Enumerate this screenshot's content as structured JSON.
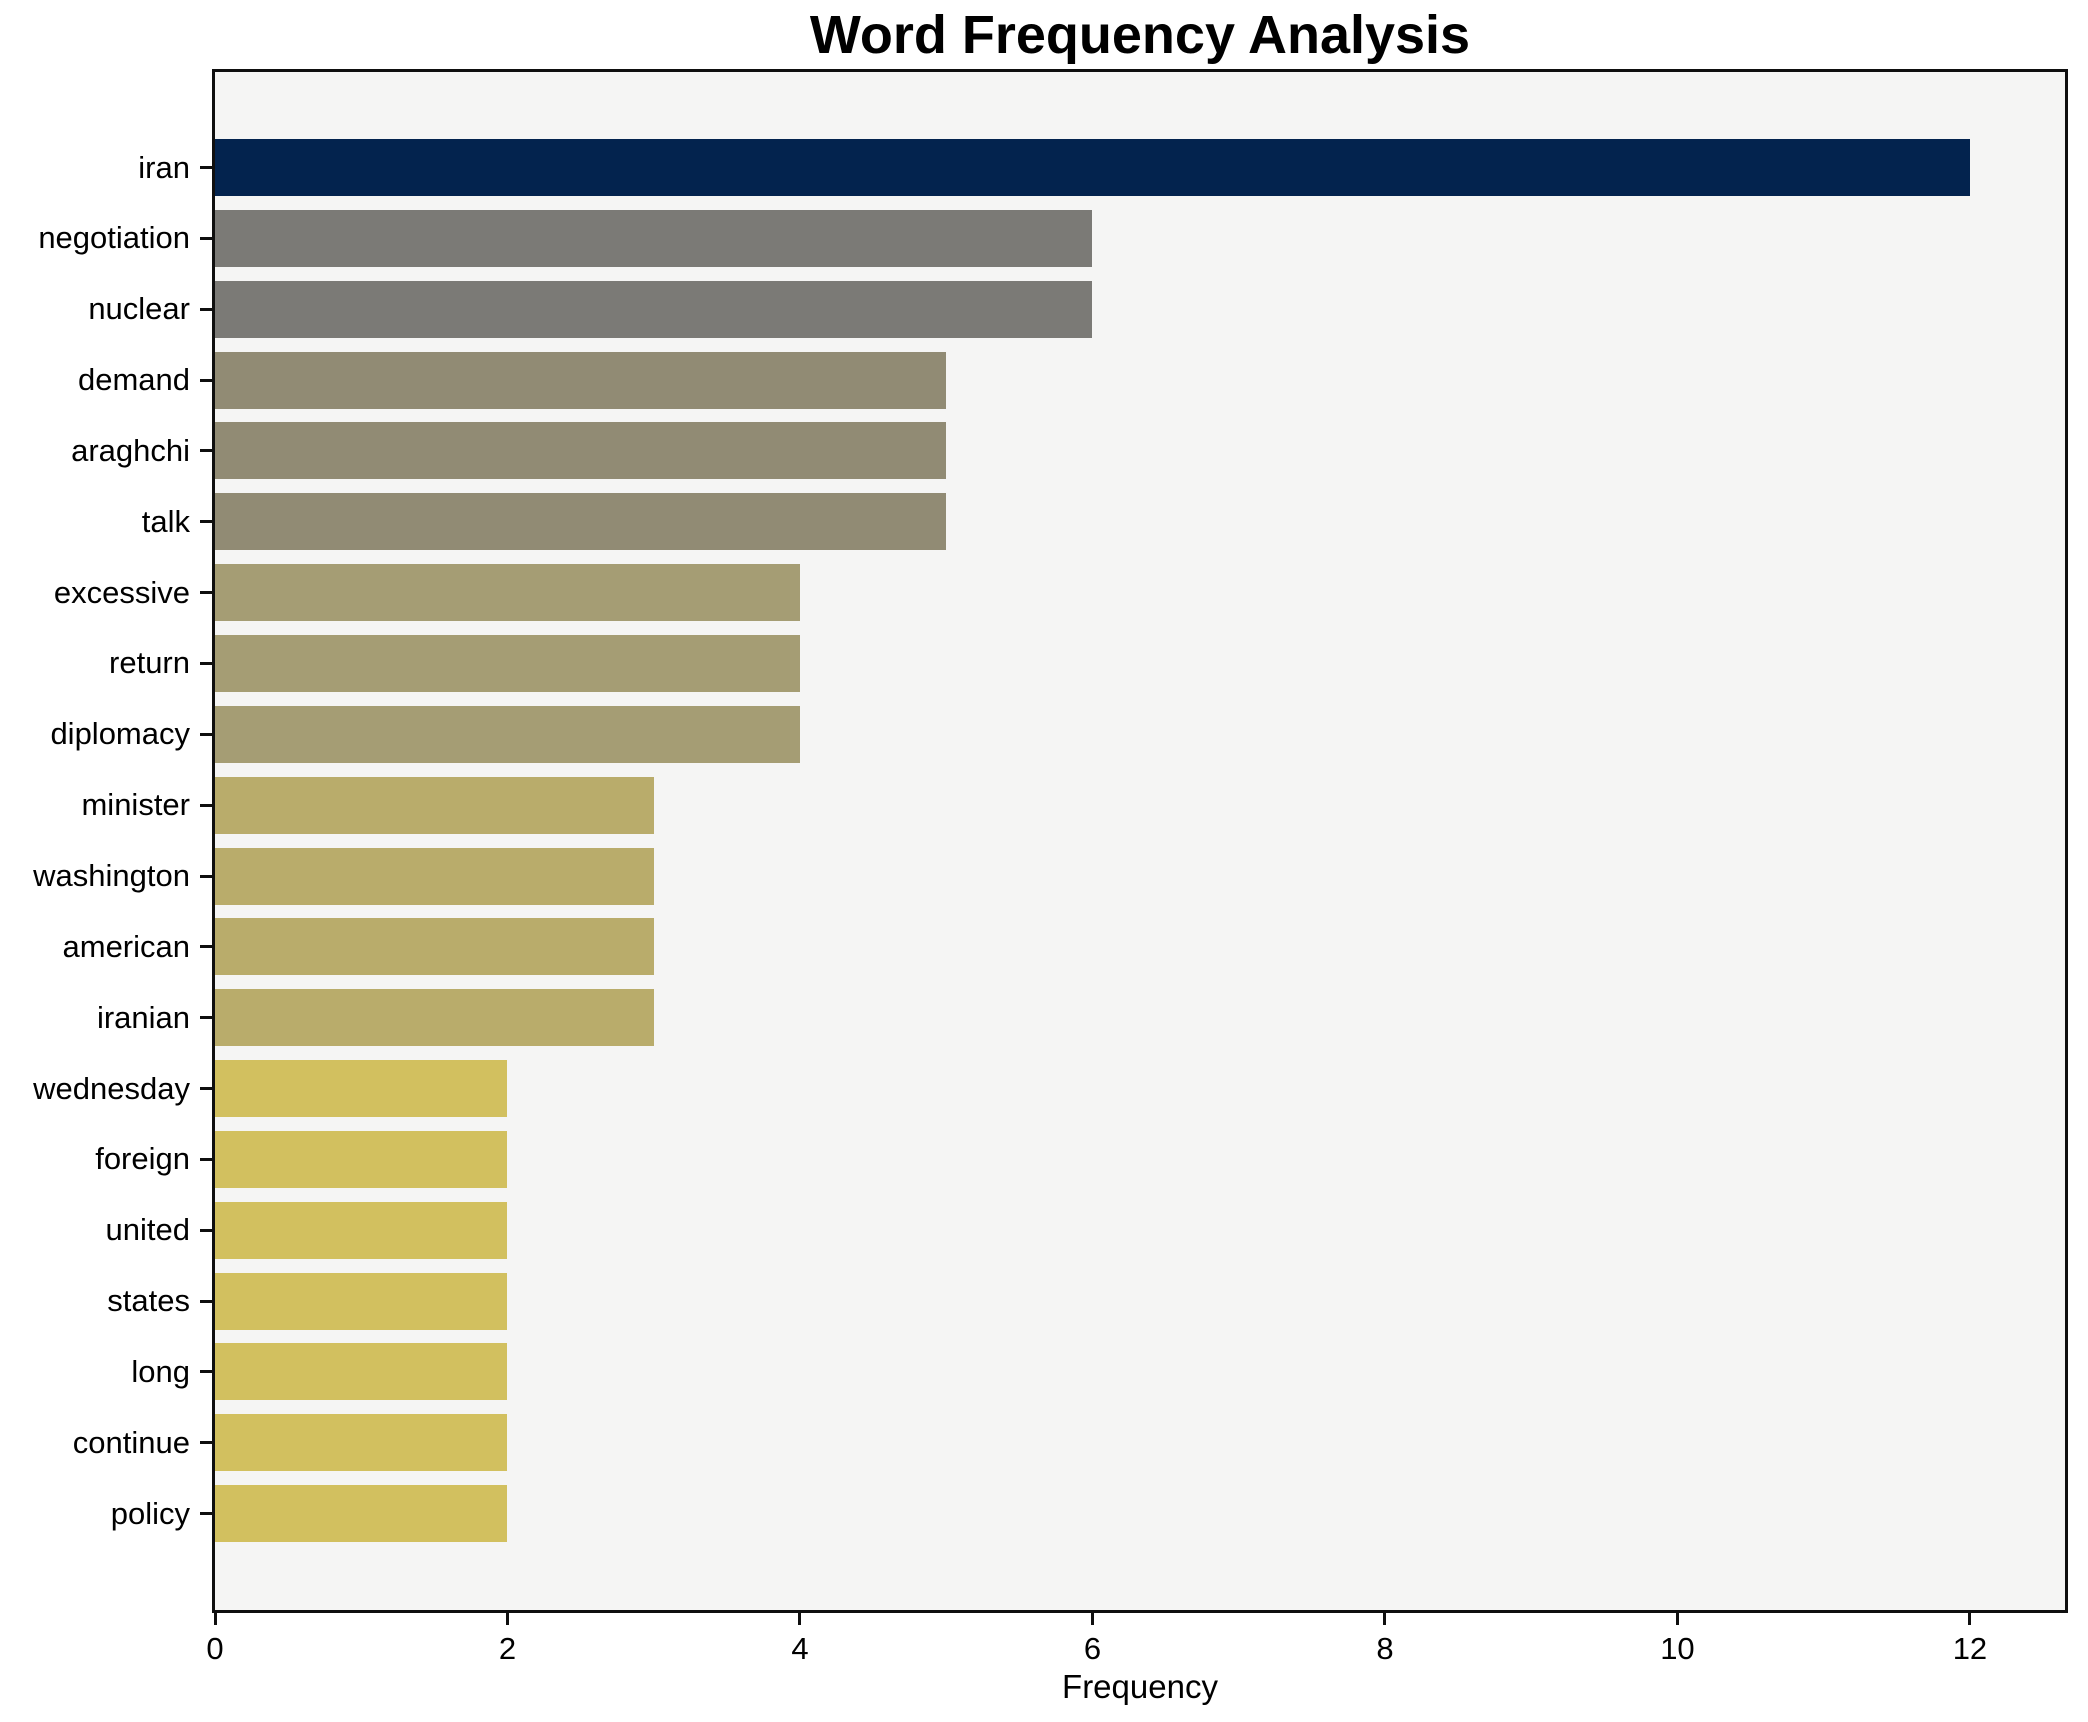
{
  "chart_data": {
    "type": "bar",
    "orientation": "horizontal",
    "title": "Word Frequency Analysis",
    "xlabel": "Frequency",
    "ylabel": "",
    "grid": false,
    "legend": null,
    "xlim": [
      0,
      12.65
    ],
    "xticks": [
      0,
      2,
      4,
      6,
      8,
      10,
      12
    ],
    "plot_background": "#f5f5f4",
    "figure_background": "#ffffff",
    "spine_color": "#0f0f0f",
    "categories": [
      "iran",
      "negotiation",
      "nuclear",
      "demand",
      "araghchi",
      "talk",
      "excessive",
      "return",
      "diplomacy",
      "minister",
      "washington",
      "american",
      "iranian",
      "wednesday",
      "foreign",
      "united",
      "states",
      "long",
      "continue",
      "policy"
    ],
    "values": [
      12,
      6,
      6,
      5,
      5,
      5,
      4,
      4,
      4,
      3,
      3,
      3,
      3,
      2,
      2,
      2,
      2,
      2,
      2,
      2
    ],
    "bar_colors": [
      "#03234e",
      "#7b7a76",
      "#7b7a76",
      "#918b74",
      "#918b74",
      "#918b74",
      "#a59d74",
      "#a59d74",
      "#a59d74",
      "#b9ac6b",
      "#b9ac6b",
      "#b9ac6b",
      "#b9ac6b",
      "#d2c05f",
      "#d2c05f",
      "#d2c05f",
      "#d2c05f",
      "#d2c05f",
      "#d2c05f",
      "#d2c05f"
    ]
  }
}
